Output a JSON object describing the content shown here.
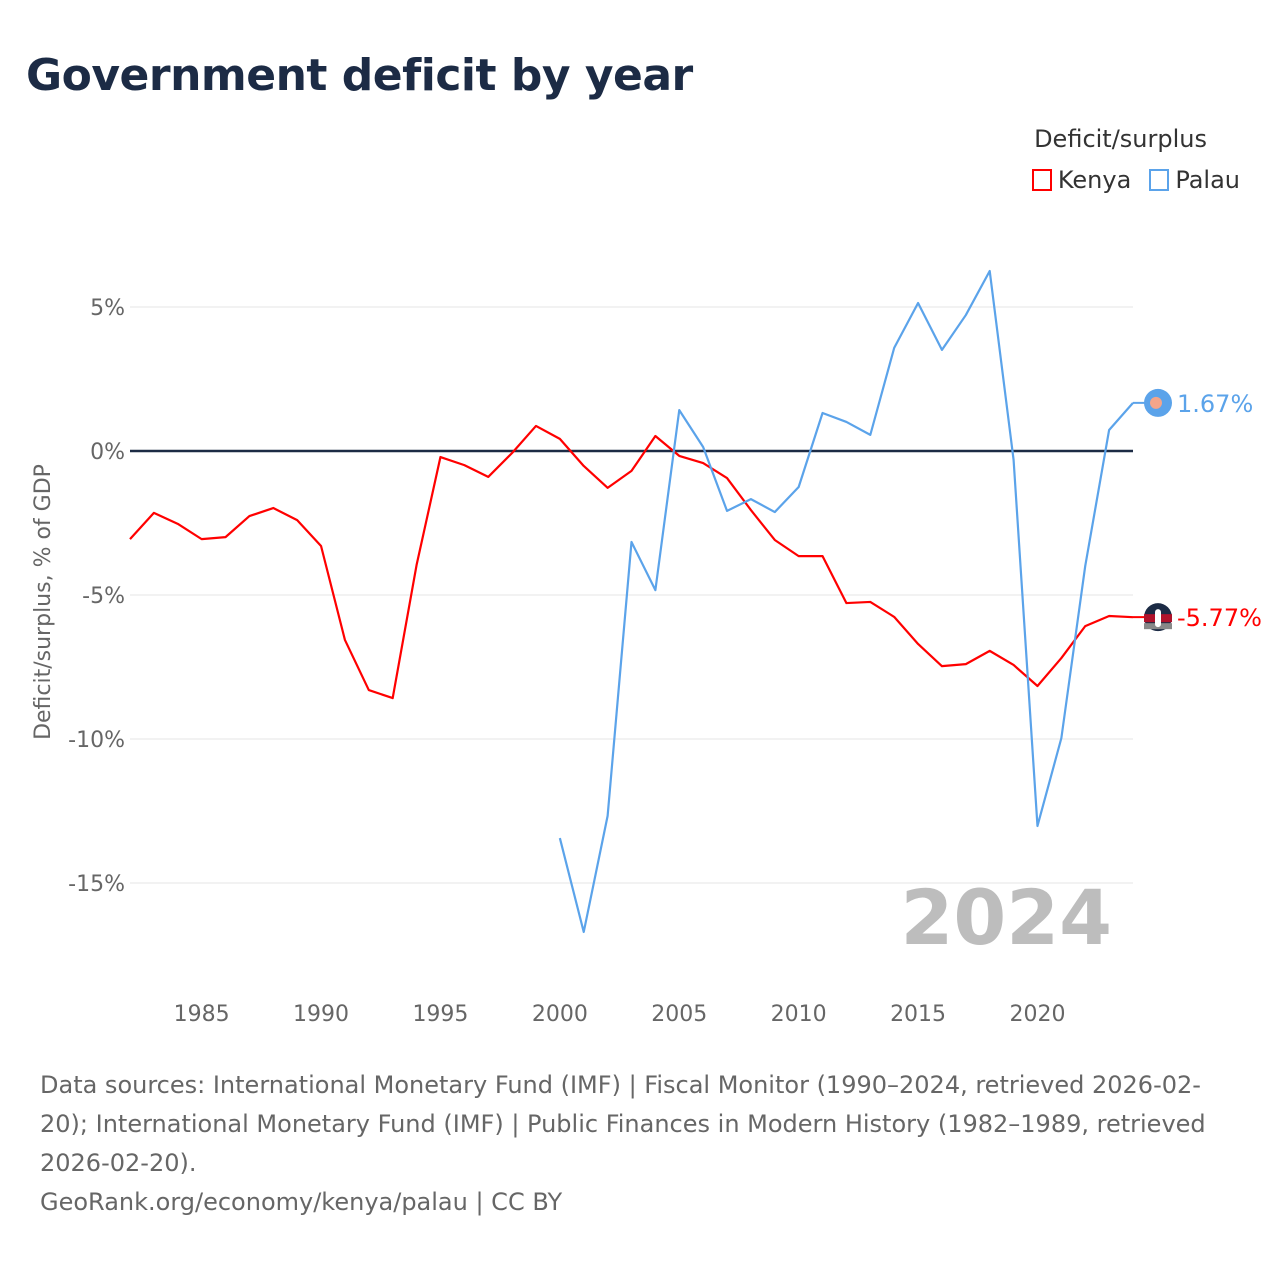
{
  "title": "Government deficit by year",
  "legend": {
    "title": "Deficit/surplus",
    "items": [
      {
        "label": "Kenya",
        "color": "#ff0000"
      },
      {
        "label": "Palau",
        "color": "#5ba3ea"
      }
    ]
  },
  "footer": {
    "sources": "Data sources: International Monetary Fund (IMF) | Fiscal Monitor (1990–2024, retrieved 2026-02-20); International Monetary Fund (IMF) | Public Finances in Modern History (1982–1989, retrieved 2026-02-20).",
    "credit": "GeoRank.org/economy/kenya/palau | CC BY"
  },
  "chart_data": {
    "type": "line",
    "title": "Government deficit by year",
    "ylabel": "Deficit/surplus, % of GDP",
    "xlabel": "",
    "xlim": [
      1982,
      2024
    ],
    "ylim": [
      -18,
      8
    ],
    "yticks": [
      5,
      0,
      -5,
      -10,
      -15
    ],
    "ytick_labels": [
      "5%",
      "0%",
      "-5%",
      "-10%",
      "-15%"
    ],
    "xticks": [
      1985,
      1990,
      1995,
      2000,
      2005,
      2010,
      2015,
      2020
    ],
    "xtick_labels": [
      "1985",
      "1990",
      "1995",
      "2000",
      "2005",
      "2010",
      "2015",
      "2020"
    ],
    "year_watermark": "2024",
    "series": [
      {
        "name": "Kenya",
        "color": "#ff0000",
        "end_label": "-5.77%",
        "start_year": 1982,
        "values": [
          -3.06,
          -2.15,
          -2.53,
          -3.06,
          -2.99,
          -2.26,
          -1.98,
          -2.4,
          -3.3,
          -6.56,
          -8.3,
          -8.58,
          -3.96,
          -0.21,
          -0.49,
          -0.9,
          -0.07,
          0.87,
          0.42,
          -0.52,
          -1.28,
          -0.69,
          0.52,
          -0.17,
          -0.42,
          -0.94,
          -2.05,
          -3.09,
          -3.65,
          -3.65,
          -5.28,
          -5.24,
          -5.76,
          -6.7,
          -7.47,
          -7.4,
          -6.94,
          -7.43,
          -8.16,
          -7.19,
          -6.08,
          -5.73,
          -5.77
        ]
      },
      {
        "name": "Palau",
        "color": "#5ba3ea",
        "end_label": "1.67%",
        "start_year": 2000,
        "values": [
          -13.44,
          -16.7,
          -12.67,
          -3.16,
          -4.83,
          1.42,
          0.14,
          -2.08,
          -1.67,
          -2.12,
          -1.25,
          1.32,
          1.01,
          0.56,
          3.58,
          5.14,
          3.51,
          4.72,
          6.25,
          -0.31,
          -13.02,
          -9.97,
          -3.99,
          0.73,
          1.67
        ]
      }
    ]
  }
}
